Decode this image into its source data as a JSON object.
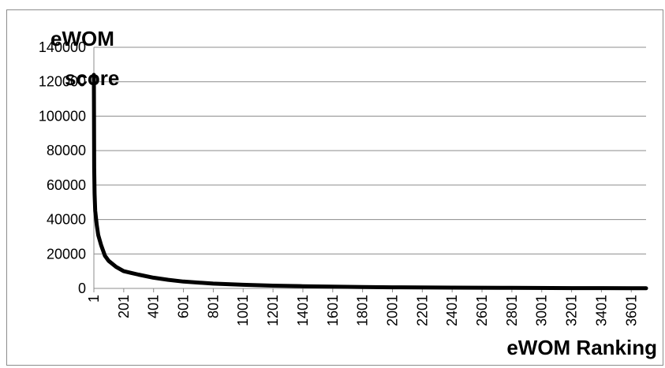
{
  "chart_data": {
    "type": "line",
    "title": "",
    "ylabel_lines": [
      "eWOM",
      "score"
    ],
    "xlabel": "eWOM Ranking",
    "ylim": [
      0,
      140000
    ],
    "yticks": [
      0,
      20000,
      40000,
      60000,
      80000,
      100000,
      120000,
      140000
    ],
    "xlim": [
      1,
      3700
    ],
    "xticks": [
      1,
      201,
      401,
      601,
      801,
      1001,
      1201,
      1401,
      1601,
      1801,
      2001,
      2201,
      2401,
      2601,
      2801,
      3001,
      3201,
      3401,
      3601
    ],
    "grid": "horizontal",
    "legend": "none",
    "line_color": "#000000",
    "series": [
      {
        "x": [
          1,
          3,
          6,
          10,
          20,
          30,
          50,
          75,
          100,
          150,
          200,
          250,
          300,
          400,
          500,
          600,
          800,
          1000,
          1200,
          1400,
          1600,
          1800,
          2000,
          2400,
          2800,
          3200,
          3600,
          3700
        ],
        "values": [
          124000,
          70000,
          55000,
          45000,
          37000,
          31000,
          25000,
          19000,
          16000,
          12500,
          10000,
          9000,
          8000,
          6200,
          5000,
          4000,
          2800,
          2100,
          1600,
          1300,
          1000,
          800,
          650,
          450,
          300,
          200,
          130,
          110
        ]
      }
    ]
  }
}
